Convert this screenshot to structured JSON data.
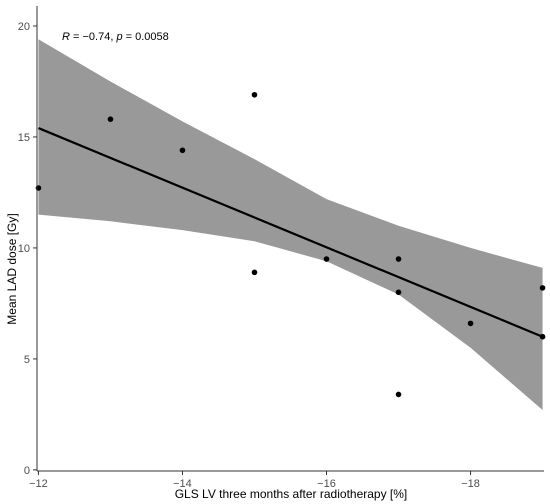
{
  "chart_data": {
    "type": "scatter",
    "title": "",
    "xlabel": "GLS LV three months after radiotherapy [%]",
    "ylabel": "Mean LAD dose [Gy]",
    "x_axis_reversed": true,
    "xlim": [
      -11.98,
      -19.02
    ],
    "ylim": [
      -0.05,
      20.9
    ],
    "x_ticks": [
      -12,
      -14,
      -16,
      -18
    ],
    "x_tick_labels": [
      "−12",
      "−14",
      "−16",
      "−18"
    ],
    "y_ticks": [
      0,
      5,
      10,
      15,
      20
    ],
    "y_tick_labels": [
      "0",
      "5",
      "10",
      "15",
      "20"
    ],
    "annotation": {
      "R_label": "R",
      "R_value": " = −0.74, ",
      "p_label": "p",
      "p_value": " = 0.0058"
    },
    "points": [
      {
        "x": -12,
        "y": 12.7
      },
      {
        "x": -13,
        "y": 15.8
      },
      {
        "x": -14,
        "y": 14.4
      },
      {
        "x": -15,
        "y": 16.9
      },
      {
        "x": -15,
        "y": 8.9
      },
      {
        "x": -16,
        "y": 9.5
      },
      {
        "x": -17,
        "y": 9.5
      },
      {
        "x": -17,
        "y": 8.0
      },
      {
        "x": -17,
        "y": 3.4
      },
      {
        "x": -18,
        "y": 6.6
      },
      {
        "x": -19,
        "y": 8.2
      },
      {
        "x": -19,
        "y": 6.0
      }
    ],
    "regression_line": [
      {
        "x": -12,
        "y": 15.4
      },
      {
        "x": -19,
        "y": 6.0
      }
    ],
    "confidence_band": {
      "x": [
        -12,
        -13,
        -14,
        -15,
        -16,
        -17,
        -18,
        -19
      ],
      "upper": [
        19.4,
        17.5,
        15.7,
        14.0,
        12.2,
        11.0,
        10.0,
        9.1
      ],
      "lower": [
        11.5,
        11.2,
        10.8,
        10.3,
        9.4,
        7.9,
        5.5,
        2.7
      ]
    },
    "grid": false,
    "legend": "none",
    "colors": {
      "points": "#000000",
      "line": "#000000",
      "band": "#999999",
      "axis": "#333333",
      "tick_text": "#4d4d4d"
    }
  }
}
